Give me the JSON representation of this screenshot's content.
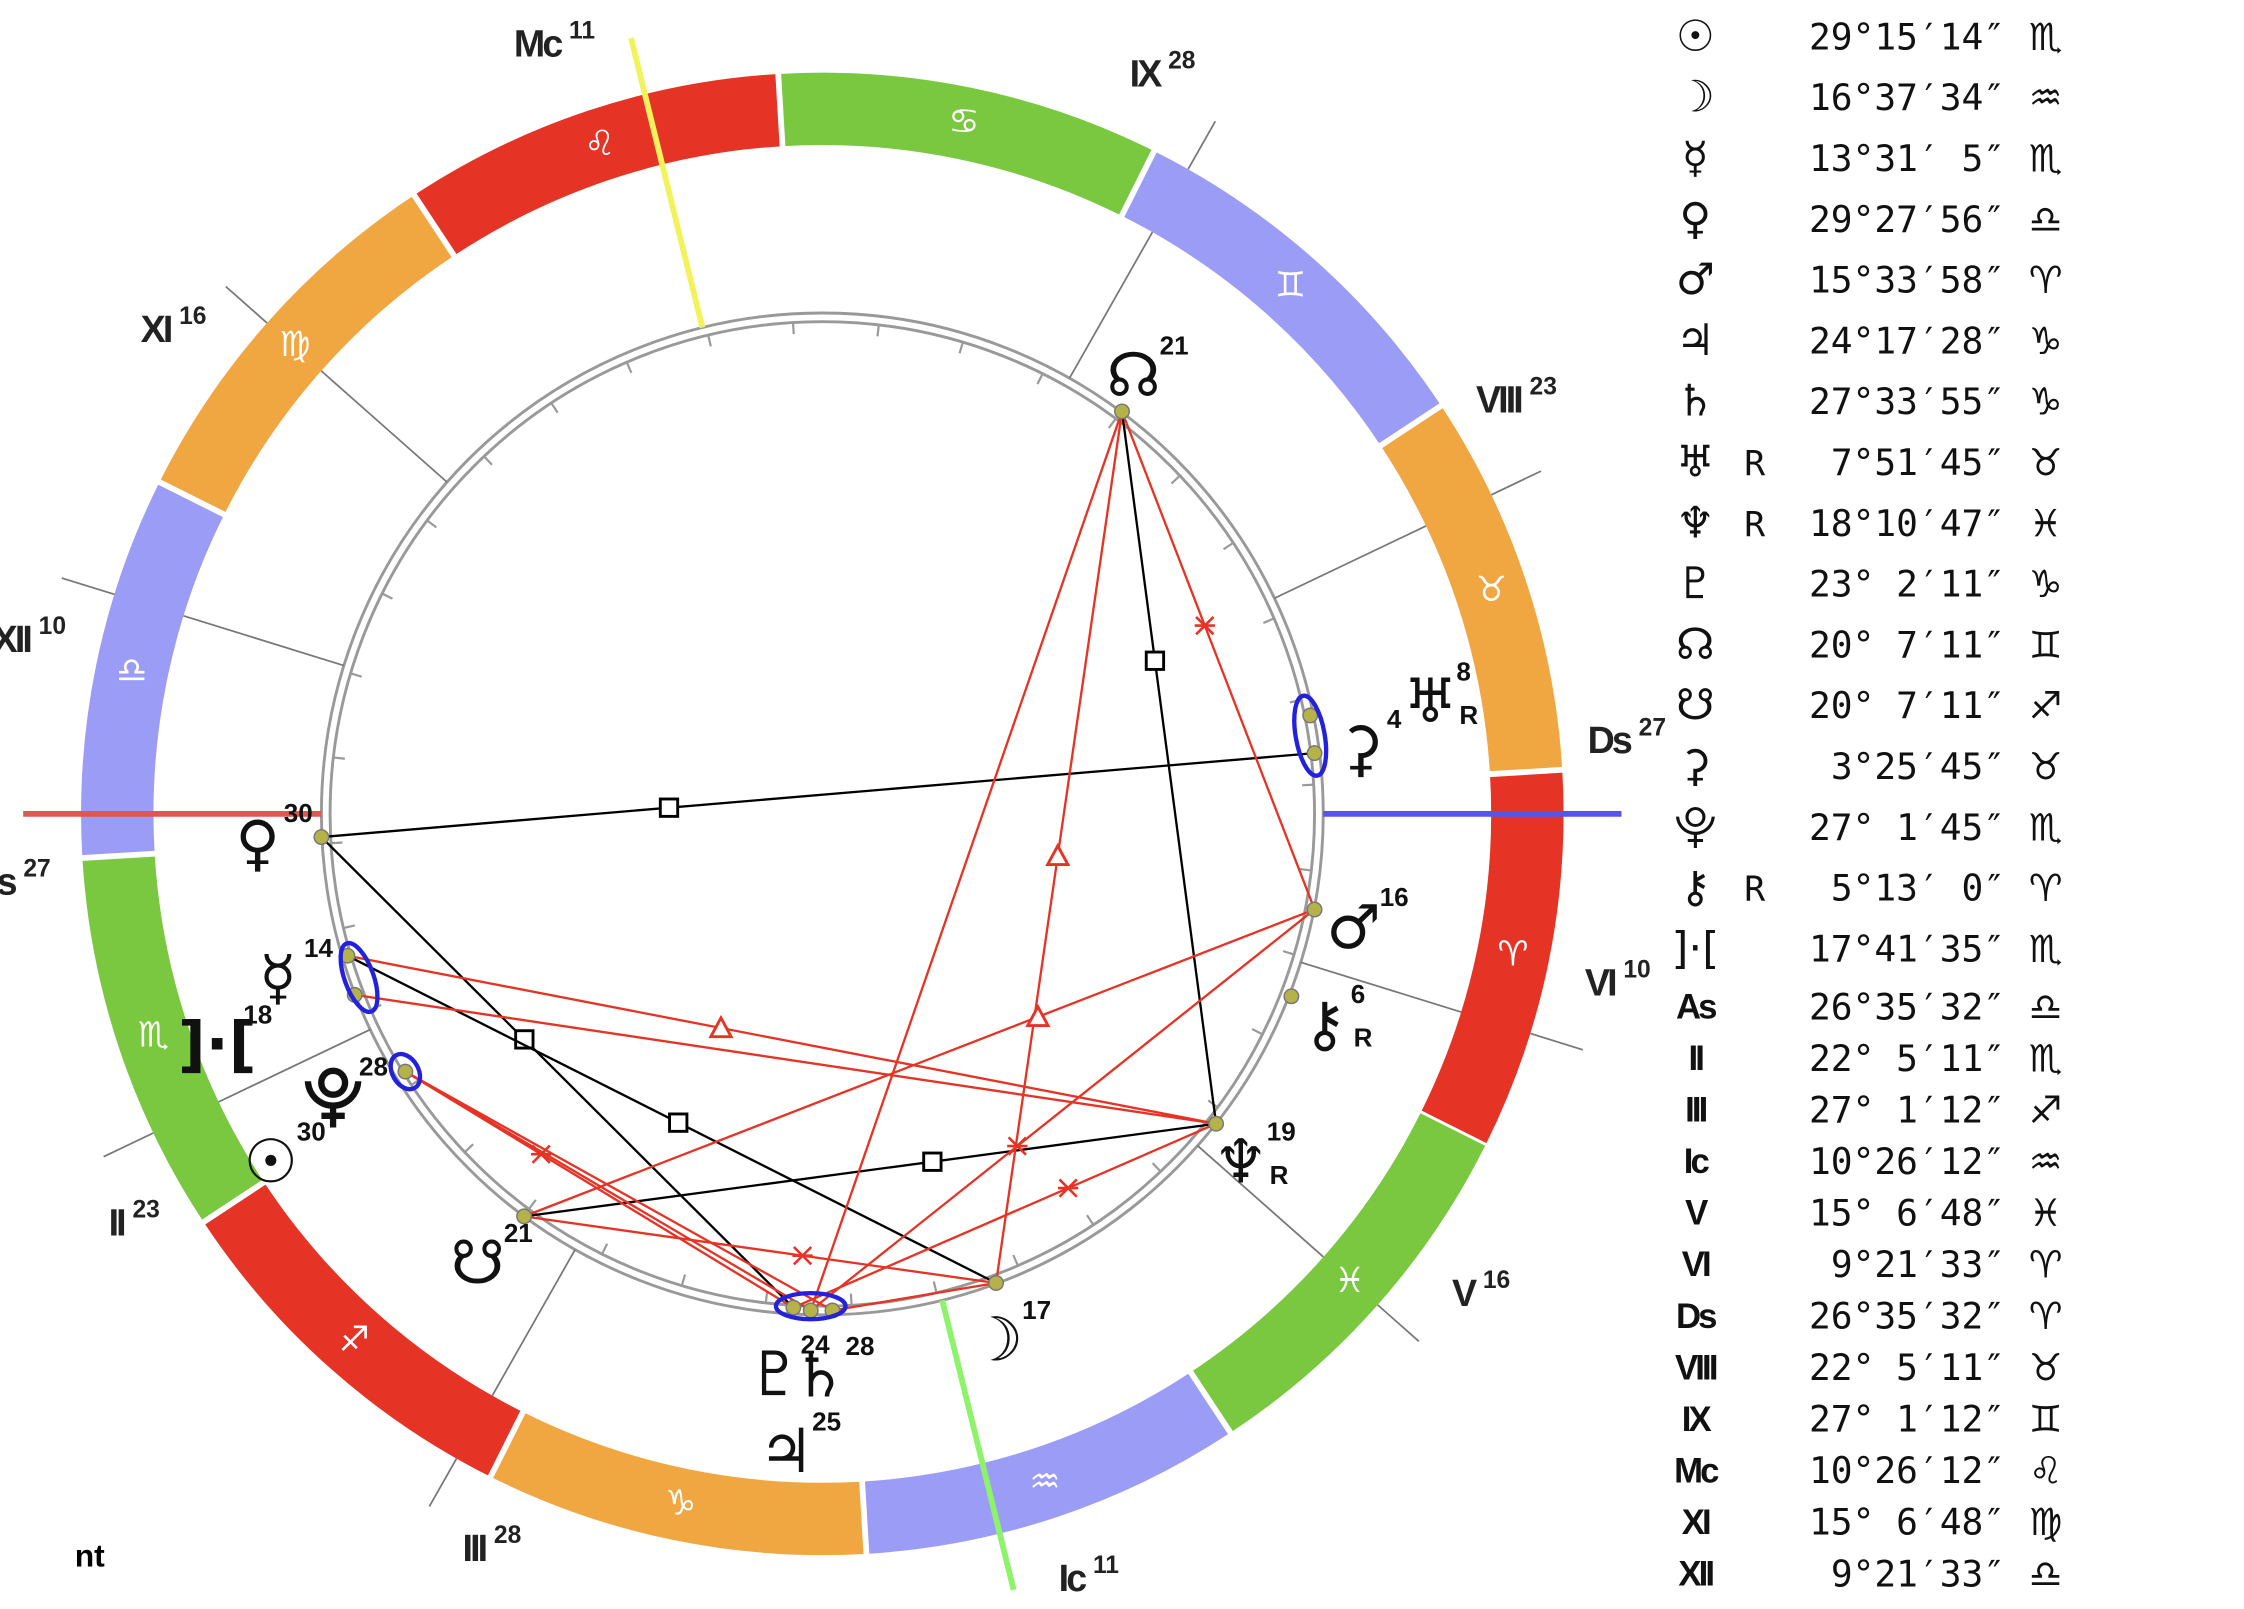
{
  "wheel": {
    "signs": [
      "♈",
      "♉",
      "♊",
      "♋",
      "♌",
      "♍",
      "♎",
      "♏",
      "♐",
      "♑",
      "♒",
      "♓"
    ],
    "houses": [
      {
        "label": "As",
        "degree": 27
      },
      {
        "label": "II",
        "degree": 23
      },
      {
        "label": "III",
        "degree": 28
      },
      {
        "label": "Ic",
        "degree": 11
      },
      {
        "label": "V",
        "degree": 16
      },
      {
        "label": "VI",
        "degree": 10
      },
      {
        "label": "Ds",
        "degree": 27
      },
      {
        "label": "VIII",
        "degree": 23
      },
      {
        "label": "IX",
        "degree": 28
      },
      {
        "label": "Mc",
        "degree": 11
      },
      {
        "label": "XI",
        "degree": 16
      },
      {
        "label": "XII",
        "degree": 10
      }
    ],
    "bodies": [
      {
        "glyph": "☊",
        "degree": 21
      },
      {
        "glyph": "♅",
        "degree": 8,
        "retrograde": "R"
      },
      {
        "glyph": "⚳",
        "degree": 4
      },
      {
        "glyph": "♂",
        "degree": 16
      },
      {
        "glyph": "⚷",
        "degree": 6,
        "retrograde": "R"
      },
      {
        "glyph": "♆",
        "degree": 19,
        "retrograde": "R"
      },
      {
        "glyph": "☽",
        "degree": 17
      },
      {
        "glyph": "♄",
        "degree": 28
      },
      {
        "glyph": "♇",
        "degree": 24
      },
      {
        "glyph": "♃",
        "degree": 25
      },
      {
        "glyph": "☋",
        "degree": 21
      },
      {
        "glyph": "☉",
        "degree": 30
      },
      {
        "glyph": "⯓",
        "degree": 28
      },
      {
        "glyph": "]·[",
        "degree": 18
      },
      {
        "glyph": "☿",
        "degree": 14
      },
      {
        "glyph": "♀",
        "degree": 30
      }
    ]
  },
  "table": {
    "rows": [
      {
        "glyph": "☉",
        "position": "29°15′14″",
        "sign": "♏"
      },
      {
        "glyph": "☽",
        "position": "16°37′34″",
        "sign": "♒"
      },
      {
        "glyph": "☿",
        "position": "13°31′ 5″",
        "sign": "♏"
      },
      {
        "glyph": "♀",
        "position": "29°27′56″",
        "sign": "♎"
      },
      {
        "glyph": "♂",
        "position": "15°33′58″",
        "sign": "♈"
      },
      {
        "glyph": "♃",
        "position": "24°17′28″",
        "sign": "♑"
      },
      {
        "glyph": "♄",
        "position": "27°33′55″",
        "sign": "♑"
      },
      {
        "glyph": "♅",
        "retrograde": "R",
        "position": "7°51′45″",
        "sign": "♉"
      },
      {
        "glyph": "♆",
        "retrograde": "R",
        "position": "18°10′47″",
        "sign": "♓"
      },
      {
        "glyph": "♇",
        "position": "23° 2′11″",
        "sign": "♑"
      },
      {
        "glyph": "☊",
        "position": "20° 7′11″",
        "sign": "♊"
      },
      {
        "glyph": "☋",
        "position": "20° 7′11″",
        "sign": "♐"
      },
      {
        "glyph": "⚳",
        "position": "3°25′45″",
        "sign": "♉"
      },
      {
        "glyph": "⯓",
        "position": "27° 1′45″",
        "sign": "♏"
      },
      {
        "glyph": "⚷",
        "retrograde": "R",
        "position": "5°13′ 0″",
        "sign": "♈"
      },
      {
        "glyph": "]·[",
        "position": "17°41′35″",
        "sign": "♏"
      },
      {
        "glyph": "As",
        "position": "26°35′32″",
        "sign": "♎"
      },
      {
        "glyph": "II",
        "position": "22° 5′11″",
        "sign": "♏"
      },
      {
        "glyph": "III",
        "position": "27° 1′12″",
        "sign": "♐"
      },
      {
        "glyph": "Ic",
        "position": "10°26′12″",
        "sign": "♒"
      },
      {
        "glyph": "V",
        "position": "15° 6′48″",
        "sign": "♓"
      },
      {
        "glyph": "VI",
        "position": "9°21′33″",
        "sign": "♈"
      },
      {
        "glyph": "Ds",
        "position": "26°35′32″",
        "sign": "♈"
      },
      {
        "glyph": "VIII",
        "position": "22° 5′11″",
        "sign": "♉"
      },
      {
        "glyph": "IX",
        "position": "27° 1′12″",
        "sign": "♊"
      },
      {
        "glyph": "Mc",
        "position": "10°26′12″",
        "sign": "♌"
      },
      {
        "glyph": "XI",
        "position": "15° 6′48″",
        "sign": "♍"
      },
      {
        "glyph": "XII",
        "position": "9°21′33″",
        "sign": "♎"
      }
    ]
  },
  "footer": "nt"
}
